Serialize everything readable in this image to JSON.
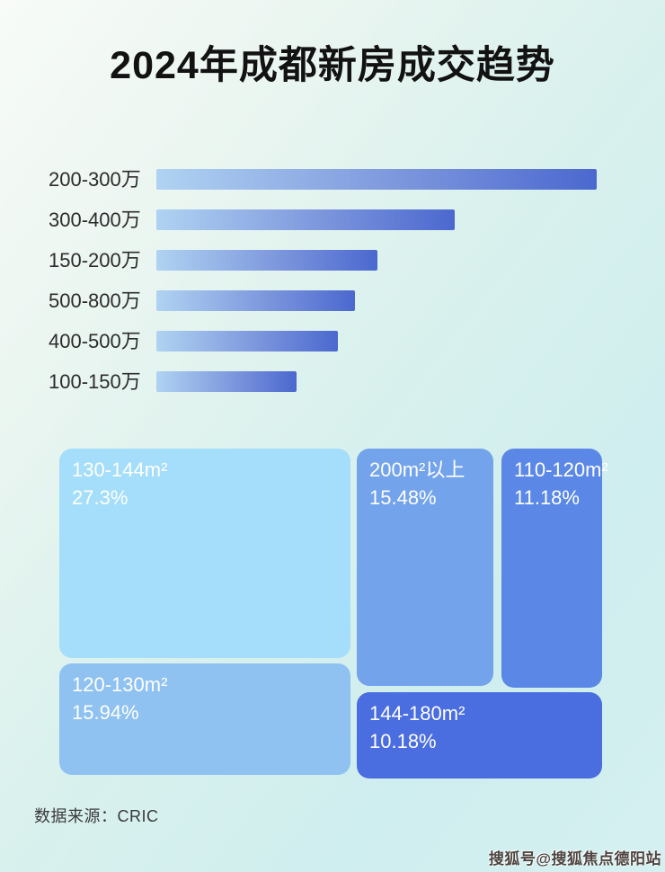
{
  "page": {
    "title": "2024年成都新房成交趋势",
    "source_label": "数据来源：CRIC",
    "watermark": "搜狐号@搜狐焦点德阳站"
  },
  "chart_data": [
    {
      "type": "bar",
      "orientation": "horizontal",
      "categories": [
        "200-300万",
        "300-400万",
        "150-200万",
        "500-800万",
        "400-500万",
        "100-150万"
      ],
      "values_unit": "relative bar length, % of longest bar (no numeric labels shown in image)",
      "values": [
        100,
        67.8,
        50.3,
        45.1,
        41.2,
        31.8
      ],
      "bar_gradient": [
        "#b0d3f2",
        "#4b68cf"
      ],
      "label_color": "#2c2c2c",
      "grid": false,
      "legend": false
    },
    {
      "type": "treemap",
      "text_color": "#ffffff",
      "items": [
        {
          "label": "130-144m²",
          "display_value": "27.3%",
          "value_pct": 27.3,
          "color": "#a5defa"
        },
        {
          "label": "120-130m²",
          "display_value": "15.94%",
          "value_pct": 15.94,
          "color": "#8fc1f1"
        },
        {
          "label": "200m²以上",
          "display_value": "15.48%",
          "value_pct": 15.48,
          "color": "#73a3eb"
        },
        {
          "label": "110-120m²",
          "display_value": "11.18%",
          "value_pct": 11.18,
          "color": "#5b88e7"
        },
        {
          "label": "144-180m²",
          "display_value": "10.18%",
          "value_pct": 10.18,
          "color": "#4a6de0"
        }
      ]
    }
  ]
}
